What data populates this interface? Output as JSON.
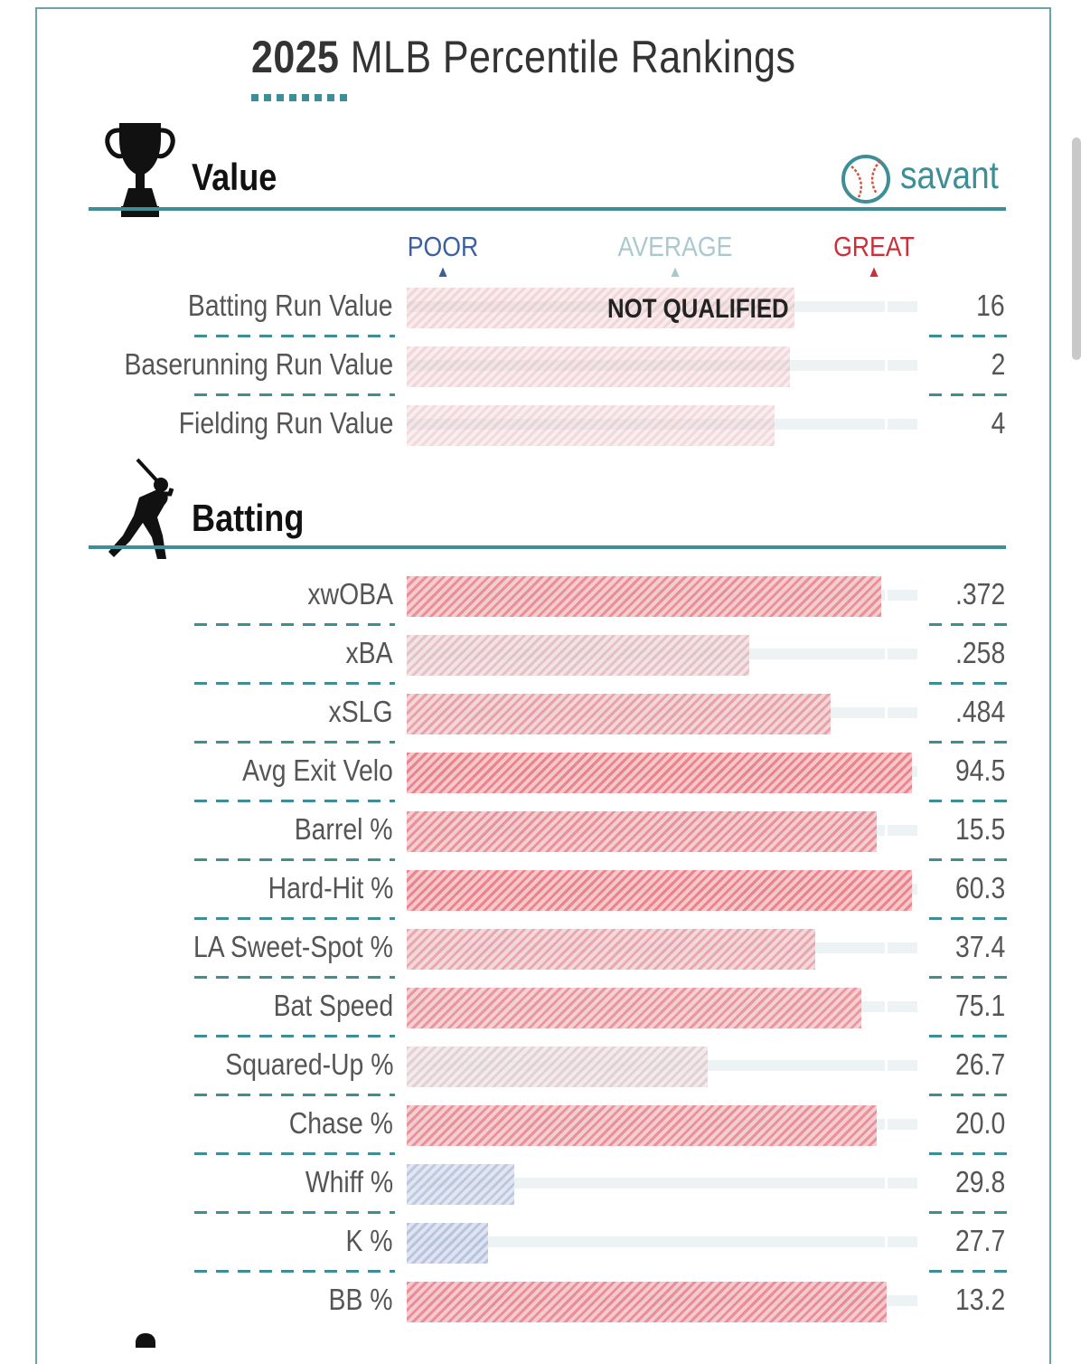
{
  "title": {
    "year": "2025",
    "rest": " MLB Percentile Rankings"
  },
  "brand": "savant",
  "legend": {
    "poor": {
      "label": "POOR",
      "color": "#3b5fa0"
    },
    "average": {
      "label": "AVERAGE",
      "color": "#a9c9cf"
    },
    "great": {
      "label": "GREAT",
      "color": "#c9303a"
    }
  },
  "not_qualified_label": "NOT QUALIFIED",
  "icons": {
    "value": "trophy-icon",
    "batting": "batter-icon",
    "brand": "baseball-icon"
  },
  "chart_data": {
    "type": "bar",
    "title": "2025 MLB Percentile Rankings",
    "xlim": [
      0,
      100
    ],
    "legend": [
      "POOR",
      "AVERAGE",
      "GREAT"
    ],
    "sections": [
      {
        "name": "Value",
        "rows": [
          {
            "label": "Batting Run Value",
            "value": "16",
            "percentile": 76,
            "qualified": false
          },
          {
            "label": "Baserunning Run Value",
            "value": "2",
            "percentile": 75,
            "qualified": false
          },
          {
            "label": "Fielding Run Value",
            "value": "4",
            "percentile": 72,
            "qualified": false
          }
        ]
      },
      {
        "name": "Batting",
        "rows": [
          {
            "label": "xwOBA",
            "value": ".372",
            "percentile": 93,
            "qualified": true
          },
          {
            "label": "xBA",
            "value": ".258",
            "percentile": 67,
            "qualified": true
          },
          {
            "label": "xSLG",
            "value": ".484",
            "percentile": 83,
            "qualified": true
          },
          {
            "label": "Avg Exit Velo",
            "value": "94.5",
            "percentile": 99,
            "qualified": true
          },
          {
            "label": "Barrel %",
            "value": "15.5",
            "percentile": 92,
            "qualified": true
          },
          {
            "label": "Hard-Hit %",
            "value": "60.3",
            "percentile": 99,
            "qualified": true
          },
          {
            "label": "LA Sweet-Spot %",
            "value": "37.4",
            "percentile": 80,
            "qualified": true
          },
          {
            "label": "Bat Speed",
            "value": "75.1",
            "percentile": 89,
            "qualified": true
          },
          {
            "label": "Squared-Up %",
            "value": "26.7",
            "percentile": 59,
            "qualified": true
          },
          {
            "label": "Chase %",
            "value": "20.0",
            "percentile": 92,
            "qualified": true
          },
          {
            "label": "Whiff %",
            "value": "29.8",
            "percentile": 21,
            "qualified": true
          },
          {
            "label": "K %",
            "value": "27.7",
            "percentile": 16,
            "qualified": true
          },
          {
            "label": "BB %",
            "value": "13.2",
            "percentile": 94,
            "qualified": true
          }
        ]
      }
    ]
  }
}
